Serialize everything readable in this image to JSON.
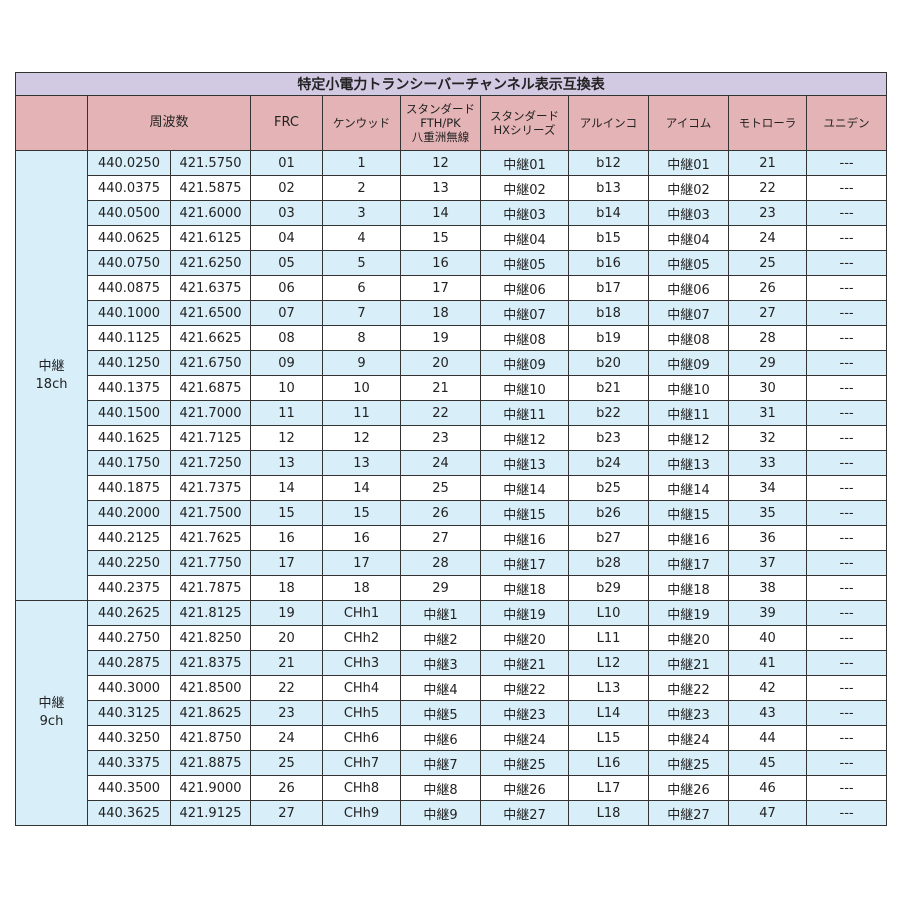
{
  "title": "特定小電力トランシーバーチャンネル表示互換表",
  "headers": {
    "freq": "周波数",
    "frc": "FRC",
    "kenwood": "ケンウッド",
    "std_fth_1": "スタンダード",
    "std_fth_2": "FTH/PK",
    "std_fth_3": "八重洲無線",
    "std_hx_1": "スタンダード",
    "std_hx_2": "HXシリーズ",
    "alinco": "アルインコ",
    "icom": "アイコム",
    "motorola": "モトローラ",
    "uniden": "ユニデン"
  },
  "groups": [
    {
      "line1": "中継",
      "line2": "18ch",
      "rows": 18
    },
    {
      "line1": "中継",
      "line2": "9ch",
      "rows": 9
    }
  ],
  "colors": {
    "title_bg": "#d2c9e3",
    "header_bg": "#e4b3b5",
    "row_blue": "#d8eef9",
    "row_white": "#ffffff"
  },
  "rows": [
    [
      "440.0250",
      "421.5750",
      "01",
      "1",
      "12",
      "中継01",
      "b12",
      "中継01",
      "21",
      "---"
    ],
    [
      "440.0375",
      "421.5875",
      "02",
      "2",
      "13",
      "中継02",
      "b13",
      "中継02",
      "22",
      "---"
    ],
    [
      "440.0500",
      "421.6000",
      "03",
      "3",
      "14",
      "中継03",
      "b14",
      "中継03",
      "23",
      "---"
    ],
    [
      "440.0625",
      "421.6125",
      "04",
      "4",
      "15",
      "中継04",
      "b15",
      "中継04",
      "24",
      "---"
    ],
    [
      "440.0750",
      "421.6250",
      "05",
      "5",
      "16",
      "中継05",
      "b16",
      "中継05",
      "25",
      "---"
    ],
    [
      "440.0875",
      "421.6375",
      "06",
      "6",
      "17",
      "中継06",
      "b17",
      "中継06",
      "26",
      "---"
    ],
    [
      "440.1000",
      "421.6500",
      "07",
      "7",
      "18",
      "中継07",
      "b18",
      "中継07",
      "27",
      "---"
    ],
    [
      "440.1125",
      "421.6625",
      "08",
      "8",
      "19",
      "中継08",
      "b19",
      "中継08",
      "28",
      "---"
    ],
    [
      "440.1250",
      "421.6750",
      "09",
      "9",
      "20",
      "中継09",
      "b20",
      "中継09",
      "29",
      "---"
    ],
    [
      "440.1375",
      "421.6875",
      "10",
      "10",
      "21",
      "中継10",
      "b21",
      "中継10",
      "30",
      "---"
    ],
    [
      "440.1500",
      "421.7000",
      "11",
      "11",
      "22",
      "中継11",
      "b22",
      "中継11",
      "31",
      "---"
    ],
    [
      "440.1625",
      "421.7125",
      "12",
      "12",
      "23",
      "中継12",
      "b23",
      "中継12",
      "32",
      "---"
    ],
    [
      "440.1750",
      "421.7250",
      "13",
      "13",
      "24",
      "中継13",
      "b24",
      "中継13",
      "33",
      "---"
    ],
    [
      "440.1875",
      "421.7375",
      "14",
      "14",
      "25",
      "中継14",
      "b25",
      "中継14",
      "34",
      "---"
    ],
    [
      "440.2000",
      "421.7500",
      "15",
      "15",
      "26",
      "中継15",
      "b26",
      "中継15",
      "35",
      "---"
    ],
    [
      "440.2125",
      "421.7625",
      "16",
      "16",
      "27",
      "中継16",
      "b27",
      "中継16",
      "36",
      "---"
    ],
    [
      "440.2250",
      "421.7750",
      "17",
      "17",
      "28",
      "中継17",
      "b28",
      "中継17",
      "37",
      "---"
    ],
    [
      "440.2375",
      "421.7875",
      "18",
      "18",
      "29",
      "中継18",
      "b29",
      "中継18",
      "38",
      "---"
    ],
    [
      "440.2625",
      "421.8125",
      "19",
      "CHh1",
      "中継1",
      "中継19",
      "L10",
      "中継19",
      "39",
      "---"
    ],
    [
      "440.2750",
      "421.8250",
      "20",
      "CHh2",
      "中継2",
      "中継20",
      "L11",
      "中継20",
      "40",
      "---"
    ],
    [
      "440.2875",
      "421.8375",
      "21",
      "CHh3",
      "中継3",
      "中継21",
      "L12",
      "中継21",
      "41",
      "---"
    ],
    [
      "440.3000",
      "421.8500",
      "22",
      "CHh4",
      "中継4",
      "中継22",
      "L13",
      "中継22",
      "42",
      "---"
    ],
    [
      "440.3125",
      "421.8625",
      "23",
      "CHh5",
      "中継5",
      "中継23",
      "L14",
      "中継23",
      "43",
      "---"
    ],
    [
      "440.3250",
      "421.8750",
      "24",
      "CHh6",
      "中継6",
      "中継24",
      "L15",
      "中継24",
      "44",
      "---"
    ],
    [
      "440.3375",
      "421.8875",
      "25",
      "CHh7",
      "中継7",
      "中継25",
      "L16",
      "中継25",
      "45",
      "---"
    ],
    [
      "440.3500",
      "421.9000",
      "26",
      "CHh8",
      "中継8",
      "中継26",
      "L17",
      "中継26",
      "46",
      "---"
    ],
    [
      "440.3625",
      "421.9125",
      "27",
      "CHh9",
      "中継9",
      "中継27",
      "L18",
      "中継27",
      "47",
      "---"
    ]
  ]
}
